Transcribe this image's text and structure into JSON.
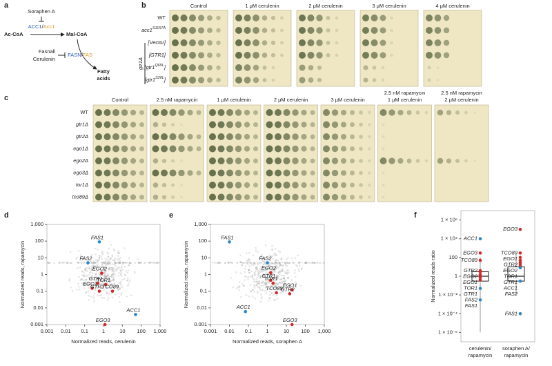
{
  "panel_labels": [
    "a",
    "b",
    "c",
    "d",
    "e",
    "f"
  ],
  "pathway": {
    "soraphen": "Soraphen A",
    "acc": [
      "ACC1",
      "/",
      "Acc1"
    ],
    "substrate": "Ac-CoA",
    "intermediate": "Mal-CoA",
    "inhibitors": [
      "Fasnall",
      "Cerulenin"
    ],
    "fas": [
      "FASN",
      "/",
      "FAS"
    ],
    "product": [
      "Fatty",
      "acids"
    ]
  },
  "panel_b": {
    "conditions": [
      "Control",
      "1 μM cerulenin",
      "2 μM cerulenin",
      "3 μM cerulenin",
      "4 μM cerulenin"
    ],
    "strains": [
      {
        "text": "WT"
      },
      {
        "text": "acc1",
        "sup": "S1157A"
      },
      {
        "text": "[Vector]"
      },
      {
        "text": "[GTR1]"
      },
      {
        "text": "[gtr1",
        "sup": "Q65L",
        "end": "]"
      },
      {
        "text": "[gtr1",
        "sup": "S20L",
        "end": "]"
      }
    ],
    "group": "gtr1Δ"
  },
  "panel_c": {
    "conditions": [
      [
        "Control"
      ],
      [
        "2.5 nM rapamycin"
      ],
      [
        "1 μM cerulenin"
      ],
      [
        "2 μM cerulenin"
      ],
      [
        "3 μM cerulenin"
      ],
      [
        "2.5 nM rapamycin",
        "1 μM cerulenin"
      ],
      [
        "2.5 nM rapamycin",
        "2 μM cerulenin"
      ]
    ],
    "strains": [
      "WT",
      "gtr1Δ",
      "gtr2Δ",
      "ego1Δ",
      "ego2Δ",
      "ego3Δ",
      "tor1Δ",
      "tco89Δ"
    ]
  },
  "chart_data": [
    {
      "type": "scatter",
      "xlabel": "Normalized reads, cerulenin",
      "ylabel": "Normalized reads, rapamycin",
      "log_x": true,
      "log_y": true,
      "xlim": [
        0.001,
        1000
      ],
      "ylim": [
        0.001,
        1000
      ],
      "xticks": [
        0.001,
        0.01,
        0.1,
        1,
        10,
        100,
        {
          "value": 1000,
          "label": "1,000"
        }
      ],
      "yticks": [
        0.001,
        0.01,
        0.1,
        1,
        10,
        100,
        {
          "value": 1000,
          "label": "1,000"
        }
      ],
      "series": [
        {
          "color": "#2a86c8",
          "labels": [
            "FAS1",
            "FAS2",
            "ACC1"
          ],
          "x": [
            0.6,
            0.15,
            50
          ],
          "values": [
            90,
            5,
            0.004
          ]
        },
        {
          "color": "#d62828",
          "labels": [
            "EGO2",
            "GTR1",
            "TOR1",
            "EGO1",
            "GTR2",
            "TCO89",
            "EGO3"
          ],
          "x": [
            0.8,
            0.5,
            1.3,
            0.25,
            0.6,
            3,
            1.2
          ],
          "values": [
            1.2,
            0.3,
            0.25,
            0.15,
            0.1,
            0.1,
            0.001
          ]
        }
      ]
    },
    {
      "type": "scatter",
      "xlabel": "Normalized reads, soraphen A",
      "ylabel": "Normalized reads, rapamycin",
      "log_x": true,
      "log_y": true,
      "xlim": [
        0.001,
        1000
      ],
      "ylim": [
        0.001,
        1000
      ],
      "xticks": [
        0.001,
        0.01,
        0.1,
        1,
        10,
        100,
        {
          "value": 1000,
          "label": "1,000"
        }
      ],
      "yticks": [
        0.001,
        0.01,
        0.1,
        1,
        10,
        100,
        {
          "value": 1000,
          "label": "1,000"
        }
      ],
      "series": [
        {
          "color": "#2a86c8",
          "labels": [
            "FAS1",
            "FAS2",
            "ACC1"
          ],
          "x": [
            0.01,
            1,
            0.07
          ],
          "values": [
            90,
            5,
            0.006
          ]
        },
        {
          "color": "#d62828",
          "labels": [
            "EGO2",
            "GTR1",
            "TOR1",
            "EGO1",
            "TCO89",
            "GTR2",
            "EGO3"
          ],
          "x": [
            1.5,
            1.5,
            2,
            20,
            3,
            15,
            20
          ],
          "values": [
            1.3,
            0.45,
            0.3,
            0.12,
            0.08,
            0.07,
            0.001
          ]
        }
      ]
    },
    {
      "type": "box",
      "ylabel": "Normalized reads ratio",
      "log_y": true,
      "ylim": [
        1e-07,
        10000000.0
      ],
      "yticks": [
        {
          "value": 1000000,
          "label": "1 × 10⁶"
        },
        {
          "value": 10000,
          "label": "1 × 10⁴"
        },
        100,
        1,
        {
          "value": 0.01,
          "label": "1 × 10⁻²"
        },
        {
          "value": 0.0001,
          "label": "1 × 10⁻⁴"
        },
        {
          "value": 1e-06,
          "label": "1 × 10⁻⁶"
        }
      ],
      "categories": [
        [
          "cerulenin/",
          "rapamycin"
        ],
        [
          "soraphen A/",
          "rapamycin"
        ]
      ],
      "boxes": [
        {
          "whisker_low": 1e-06,
          "q1": 0.3,
          "median": 1,
          "q3": 3,
          "whisker_high": 100
        },
        {
          "whisker_low": 0.01,
          "q1": 0.3,
          "median": 1,
          "q3": 10,
          "whisker_high": 200
        }
      ],
      "groups": [
        {
          "labels": [
            "ACC1",
            "EGO3",
            "TCO89",
            "GTR2",
            "EGO2",
            "EGO1",
            "TOR1",
            "GTR1",
            "FAS2",
            "FAS1"
          ],
          "values": [
            10000,
            300,
            50,
            4,
            3,
            1.5,
            0.7,
            0.4,
            0.05,
            0.003
          ],
          "colors": [
            "#2a86c8",
            "#d62828",
            "#d62828",
            "#d62828",
            "#d62828",
            "#d62828",
            "#d62828",
            "#d62828",
            "#2a86c8",
            "#2a86c8"
          ]
        },
        {
          "labels": [
            "EGO3",
            "TCO89",
            "EGO1",
            "GTR2",
            "EGO2",
            "TOR1",
            "GTR1",
            "ACC1",
            "FAS2",
            "FAS1"
          ],
          "values": [
            100000,
            300,
            100,
            50,
            30,
            20,
            12,
            8,
            0.3,
            0.0001
          ],
          "colors": [
            "#d62828",
            "#d62828",
            "#d62828",
            "#d62828",
            "#d62828",
            "#d62828",
            "#d62828",
            "#2a86c8",
            "#2a86c8",
            "#2a86c8"
          ]
        }
      ]
    }
  ]
}
